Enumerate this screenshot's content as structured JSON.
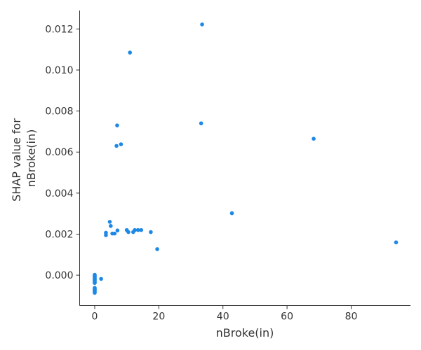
{
  "chart_data": {
    "type": "scatter",
    "title": "",
    "xlabel": "nBroke(in)",
    "ylabel_lines": [
      "SHAP value for",
      "nBroke(in)"
    ],
    "xlim": [
      -4.7,
      98.5
    ],
    "ylim": [
      -0.00148,
      0.0129
    ],
    "xticks": [
      0,
      20,
      40,
      60,
      80
    ],
    "xtick_labels": [
      "0",
      "20",
      "40",
      "60",
      "80"
    ],
    "yticks": [
      0.0,
      0.002,
      0.004,
      0.006,
      0.008,
      0.01,
      0.012
    ],
    "ytick_labels": [
      "0.000",
      "0.002",
      "0.004",
      "0.006",
      "0.008",
      "0.010",
      "0.012"
    ],
    "grid": false,
    "marker_color": "#1e88e5",
    "points": [
      {
        "x": 0,
        "y": 2e-05
      },
      {
        "x": 0,
        "y": -2e-05
      },
      {
        "x": 0,
        "y": -6e-05
      },
      {
        "x": 0,
        "y": -0.0001
      },
      {
        "x": 0,
        "y": -0.00014
      },
      {
        "x": 0,
        "y": -0.00018
      },
      {
        "x": 0,
        "y": -0.00022
      },
      {
        "x": 0,
        "y": -0.00026
      },
      {
        "x": 0,
        "y": -0.0003
      },
      {
        "x": 0,
        "y": -0.00034
      },
      {
        "x": 0,
        "y": -0.00038
      },
      {
        "x": 0,
        "y": -0.00062
      },
      {
        "x": 0,
        "y": -0.00066
      },
      {
        "x": 0,
        "y": -0.0007
      },
      {
        "x": 0,
        "y": -0.00074
      },
      {
        "x": 0,
        "y": -0.00078
      },
      {
        "x": 0,
        "y": -0.00082
      },
      {
        "x": 0,
        "y": -0.00086
      },
      {
        "x": 2,
        "y": -0.00018
      },
      {
        "x": 3.5,
        "y": 0.00207
      },
      {
        "x": 3.5,
        "y": 0.00195
      },
      {
        "x": 4.7,
        "y": 0.0026
      },
      {
        "x": 5,
        "y": 0.0024
      },
      {
        "x": 5.5,
        "y": 0.00203
      },
      {
        "x": 6.2,
        "y": 0.00203
      },
      {
        "x": 6.8,
        "y": 0.0063
      },
      {
        "x": 7,
        "y": 0.0073
      },
      {
        "x": 7.1,
        "y": 0.00218
      },
      {
        "x": 8.2,
        "y": 0.00638
      },
      {
        "x": 10,
        "y": 0.0022
      },
      {
        "x": 10.5,
        "y": 0.0021
      },
      {
        "x": 11,
        "y": 0.01085
      },
      {
        "x": 12,
        "y": 0.0021
      },
      {
        "x": 12.5,
        "y": 0.0022
      },
      {
        "x": 13.5,
        "y": 0.0022
      },
      {
        "x": 14.5,
        "y": 0.0022
      },
      {
        "x": 17.5,
        "y": 0.0021
      },
      {
        "x": 19.5,
        "y": 0.00127
      },
      {
        "x": 33.2,
        "y": 0.0074
      },
      {
        "x": 33.5,
        "y": 0.01222
      },
      {
        "x": 42.8,
        "y": 0.00302
      },
      {
        "x": 68.3,
        "y": 0.00665
      },
      {
        "x": 94,
        "y": 0.0016
      }
    ]
  }
}
